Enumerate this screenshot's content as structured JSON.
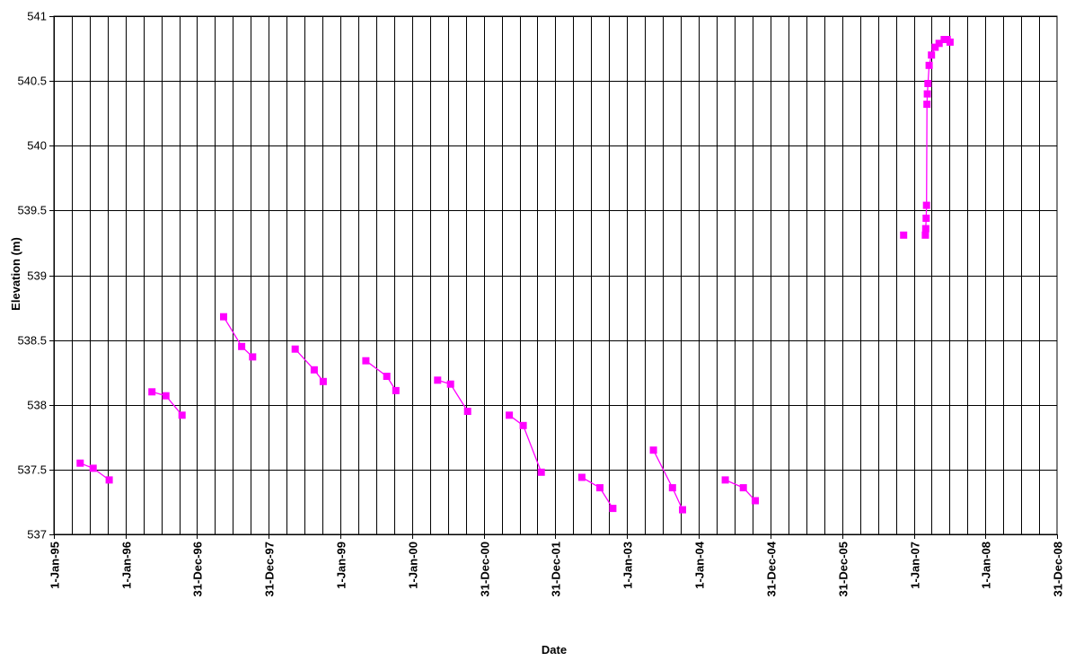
{
  "chart_data": {
    "type": "line",
    "title": "",
    "xlabel": "Date",
    "ylabel": "Elevation (m)",
    "ylim": [
      537,
      541
    ],
    "xlim": [
      "1995-01-01",
      "2008-12-31"
    ],
    "y_ticks": [
      "537",
      "537.5",
      "538",
      "538.5",
      "539",
      "539.5",
      "540",
      "540.5",
      "541"
    ],
    "x_ticks": [
      {
        "label": "1-Jan-95",
        "date": "1995-01-01"
      },
      {
        "label": "1-Jan-96",
        "date": "1996-01-01"
      },
      {
        "label": "31-Dec-96",
        "date": "1996-12-31"
      },
      {
        "label": "31-Dec-97",
        "date": "1997-12-31"
      },
      {
        "label": "1-Jan-99",
        "date": "1999-01-01"
      },
      {
        "label": "1-Jan-00",
        "date": "2000-01-01"
      },
      {
        "label": "31-Dec-00",
        "date": "2000-12-31"
      },
      {
        "label": "31-Dec-01",
        "date": "2001-12-31"
      },
      {
        "label": "1-Jan-03",
        "date": "2003-01-01"
      },
      {
        "label": "1-Jan-04",
        "date": "2004-01-01"
      },
      {
        "label": "31-Dec-04",
        "date": "2004-12-31"
      },
      {
        "label": "31-Dec-05",
        "date": "2005-12-31"
      },
      {
        "label": "1-Jan-07",
        "date": "2007-01-01"
      },
      {
        "label": "1-Jan-08",
        "date": "2008-01-01"
      },
      {
        "label": "31-Dec-08",
        "date": "2008-12-31"
      }
    ],
    "minor_gridlines_per_year": 4,
    "grid": true,
    "marker": "square",
    "series_color": "#FF00FF",
    "segments": [
      [
        [
          "1995-05-15",
          537.55
        ],
        [
          "1995-07-20",
          537.51
        ],
        [
          "1995-10-10",
          537.42
        ]
      ],
      [
        [
          "1996-05-15",
          538.1
        ],
        [
          "1996-07-25",
          538.07
        ],
        [
          "1996-10-15",
          537.92
        ]
      ],
      [
        [
          "1997-05-15",
          538.68
        ],
        [
          "1997-08-15",
          538.45
        ],
        [
          "1997-10-10",
          538.37
        ]
      ],
      [
        [
          "1998-05-15",
          538.43
        ],
        [
          "1998-08-20",
          538.27
        ],
        [
          "1998-10-05",
          538.18
        ]
      ],
      [
        [
          "1999-05-10",
          538.34
        ],
        [
          "1999-08-25",
          538.22
        ],
        [
          "1999-10-10",
          538.11
        ]
      ],
      [
        [
          "2000-05-10",
          538.19
        ],
        [
          "2000-07-15",
          538.16
        ],
        [
          "2000-10-10",
          537.95
        ]
      ],
      [
        [
          "2001-05-10",
          537.92
        ],
        [
          "2001-07-20",
          537.84
        ],
        [
          "2001-10-20",
          537.48
        ]
      ],
      [
        [
          "2002-05-15",
          537.44
        ],
        [
          "2002-08-15",
          537.36
        ],
        [
          "2002-10-20",
          537.2
        ]
      ],
      [
        [
          "2003-05-15",
          537.65
        ],
        [
          "2003-08-20",
          537.36
        ],
        [
          "2003-10-10",
          537.19
        ]
      ],
      [
        [
          "2004-05-15",
          537.42
        ],
        [
          "2004-08-15",
          537.36
        ],
        [
          "2004-10-15",
          537.26
        ]
      ],
      [
        [
          "2006-11-10",
          539.31
        ]
      ],
      [
        [
          "2007-03-01",
          539.31
        ],
        [
          "2007-03-03",
          539.36
        ],
        [
          "2007-03-05",
          539.44
        ],
        [
          "2007-03-07",
          539.54
        ],
        [
          "2007-03-09",
          540.32
        ],
        [
          "2007-03-11",
          540.4
        ],
        [
          "2007-03-14",
          540.48
        ],
        [
          "2007-03-20",
          540.62
        ],
        [
          "2007-04-01",
          540.7
        ],
        [
          "2007-04-20",
          540.76
        ],
        [
          "2007-05-10",
          540.79
        ],
        [
          "2007-06-05",
          540.82
        ],
        [
          "2007-06-20",
          540.82
        ],
        [
          "2007-07-05",
          540.8
        ]
      ]
    ]
  }
}
